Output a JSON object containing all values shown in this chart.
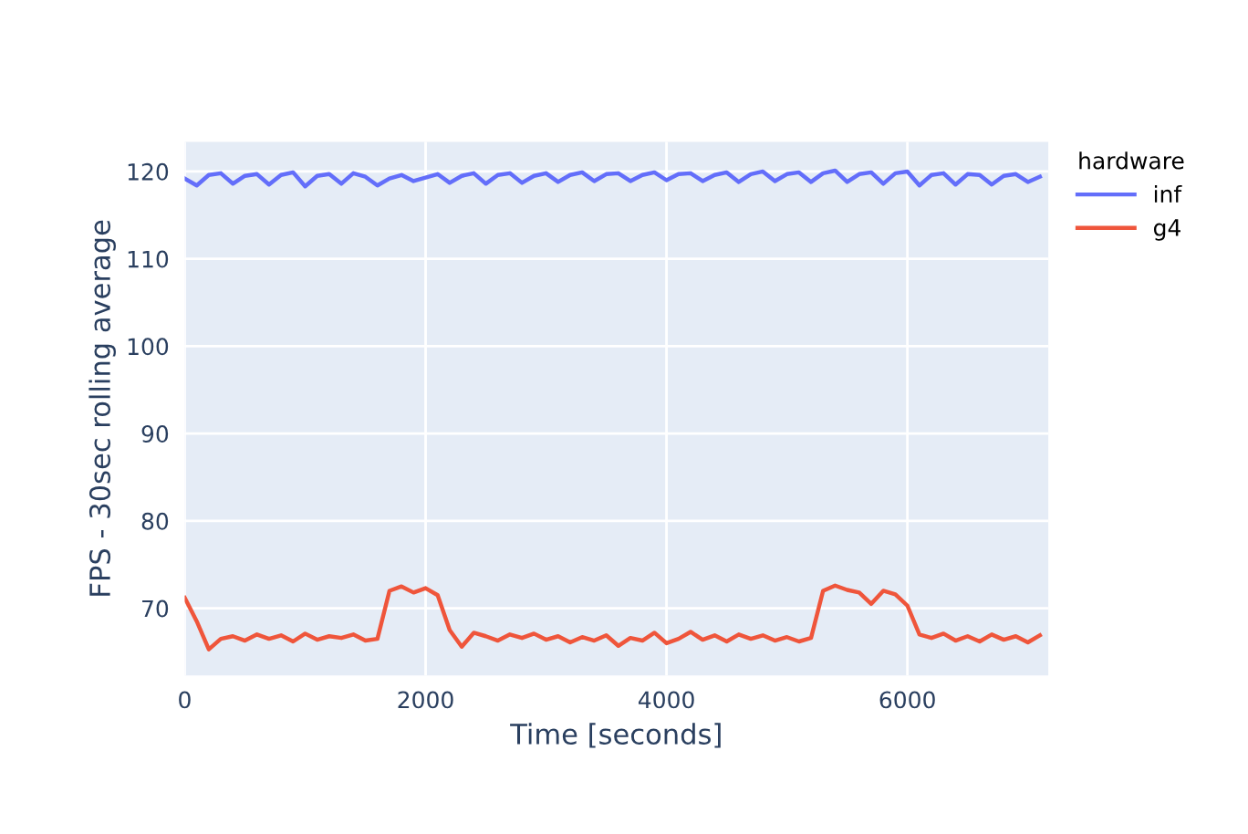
{
  "chart_data": {
    "type": "line",
    "xlabel": "Time [seconds]",
    "ylabel": "FPS - 30sec rolling average",
    "legend_title": "hardware",
    "legend": "top right",
    "grid": true,
    "x": [
      0,
      100,
      200,
      300,
      400,
      500,
      600,
      700,
      800,
      900,
      1000,
      1100,
      1200,
      1300,
      1400,
      1500,
      1600,
      1700,
      1800,
      1900,
      2000,
      2100,
      2200,
      2300,
      2400,
      2500,
      2600,
      2700,
      2800,
      2900,
      3000,
      3100,
      3200,
      3300,
      3400,
      3500,
      3600,
      3700,
      3800,
      3900,
      4000,
      4100,
      4200,
      4300,
      4400,
      4500,
      4600,
      4700,
      4800,
      4900,
      5000,
      5100,
      5200,
      5300,
      5400,
      5500,
      5600,
      5700,
      5800,
      5900,
      6000,
      6100,
      6200,
      6300,
      6400,
      6500,
      6600,
      6700,
      6800,
      6900,
      7000,
      7100
    ],
    "series": [
      {
        "name": "inf",
        "color": "#636efa",
        "values": [
          119.2,
          118.4,
          119.6,
          119.8,
          118.6,
          119.5,
          119.7,
          118.5,
          119.6,
          119.9,
          118.3,
          119.5,
          119.7,
          118.6,
          119.8,
          119.4,
          118.4,
          119.2,
          119.6,
          118.9,
          119.3,
          119.7,
          118.7,
          119.5,
          119.8,
          118.6,
          119.6,
          119.8,
          118.7,
          119.5,
          119.8,
          118.8,
          119.6,
          119.9,
          118.9,
          119.7,
          119.8,
          118.9,
          119.6,
          119.9,
          119.0,
          119.7,
          119.8,
          118.9,
          119.6,
          119.9,
          118.8,
          119.7,
          120.0,
          118.9,
          119.7,
          119.9,
          118.8,
          119.8,
          120.1,
          118.8,
          119.7,
          119.9,
          118.6,
          119.8,
          120.0,
          118.4,
          119.6,
          119.8,
          118.5,
          119.7,
          119.6,
          118.5,
          119.5,
          119.7,
          118.8,
          119.4
        ]
      },
      {
        "name": "g4",
        "color": "#ef553b",
        "values": [
          71.2,
          68.5,
          65.3,
          66.5,
          66.8,
          66.3,
          67.0,
          66.5,
          66.9,
          66.2,
          67.1,
          66.4,
          66.8,
          66.6,
          67.0,
          66.3,
          66.5,
          72.0,
          72.5,
          71.8,
          72.3,
          71.5,
          67.5,
          65.6,
          67.2,
          66.8,
          66.3,
          67.0,
          66.6,
          67.1,
          66.4,
          66.8,
          66.1,
          66.7,
          66.3,
          66.9,
          65.7,
          66.6,
          66.3,
          67.2,
          66.0,
          66.5,
          67.3,
          66.4,
          66.9,
          66.2,
          67.0,
          66.5,
          66.9,
          66.3,
          66.7,
          66.2,
          66.6,
          72.0,
          72.6,
          72.1,
          71.8,
          70.5,
          72.0,
          71.6,
          70.3,
          67.0,
          66.6,
          67.1,
          66.3,
          66.8,
          66.2,
          67.0,
          66.4,
          66.8,
          66.1,
          66.9
        ]
      }
    ],
    "xlim": [
      0,
      7170
    ],
    "xticks": [
      0,
      2000,
      4000,
      6000
    ],
    "ylim": [
      62.3,
      123.4
    ],
    "yticks": [
      70,
      80,
      90,
      100,
      110,
      120
    ]
  }
}
